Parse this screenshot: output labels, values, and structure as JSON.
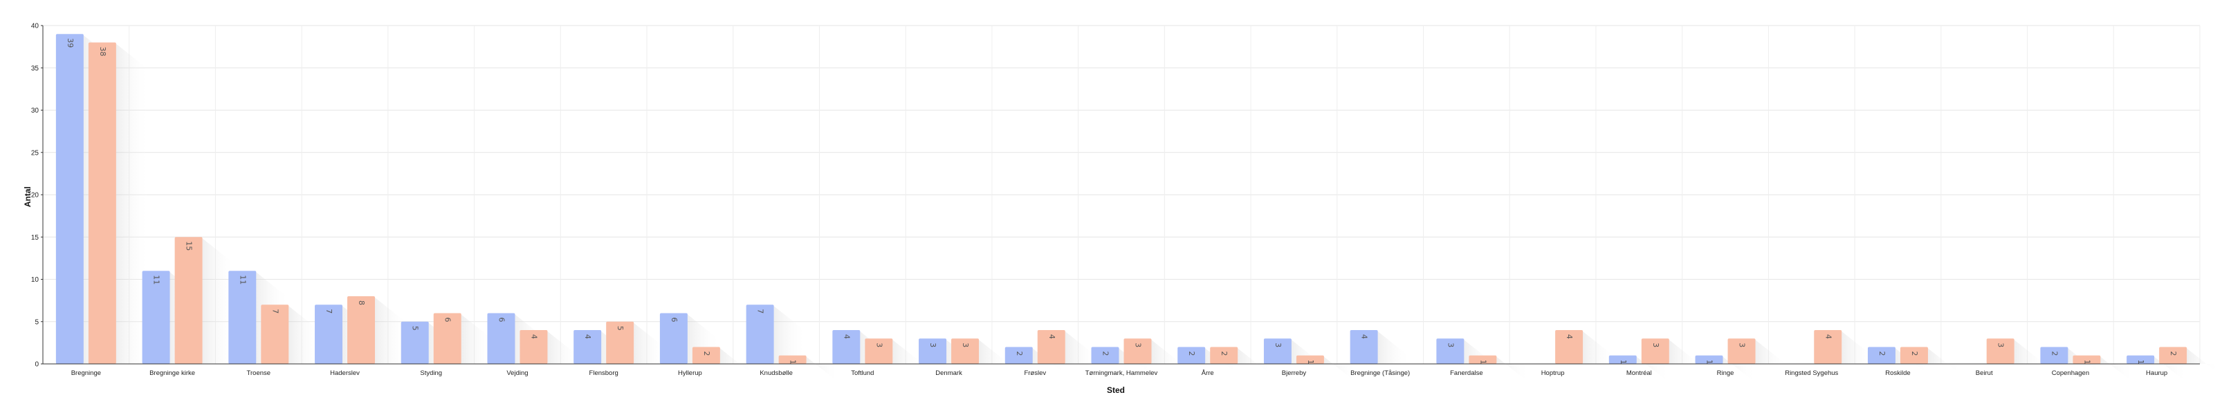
{
  "chart_data": {
    "type": "bar",
    "xlabel": "Sted",
    "ylabel": "Antal",
    "ylim": [
      0,
      40
    ],
    "yticks": [
      0,
      5,
      10,
      15,
      20,
      25,
      30,
      35,
      40
    ],
    "grid": true,
    "legend": "none",
    "categories": [
      "Bregninge",
      "Bregninge kirke",
      "Troense",
      "Haderslev",
      "Styding",
      "Vejding",
      "Flensborg",
      "Hyllerup",
      "Knudsbølle",
      "Toftlund",
      "Denmark",
      "Frøslev",
      "Tørningmark, Hammelev",
      "Årre",
      "Bjerreby",
      "Bregninge (Tåsinge)",
      "Fanerdalse",
      "Hoptrup",
      "Montréal",
      "Ringe",
      "Ringsted Sygehus",
      "Roskilde",
      "Beirut",
      "Copenhagen",
      "Haurup"
    ],
    "series": [
      {
        "values": [
          39,
          11,
          11,
          7,
          5,
          6,
          4,
          6,
          7,
          4,
          3,
          2,
          2,
          2,
          3,
          4,
          3,
          0,
          1,
          1,
          0,
          2,
          0,
          2,
          1
        ],
        "color": "#a8bdf8"
      },
      {
        "values": [
          38,
          15,
          7,
          8,
          6,
          4,
          5,
          2,
          1,
          3,
          3,
          4,
          3,
          2,
          1,
          0,
          1,
          4,
          3,
          3,
          4,
          2,
          3,
          1,
          2
        ],
        "color": "#f9bea6"
      }
    ]
  }
}
